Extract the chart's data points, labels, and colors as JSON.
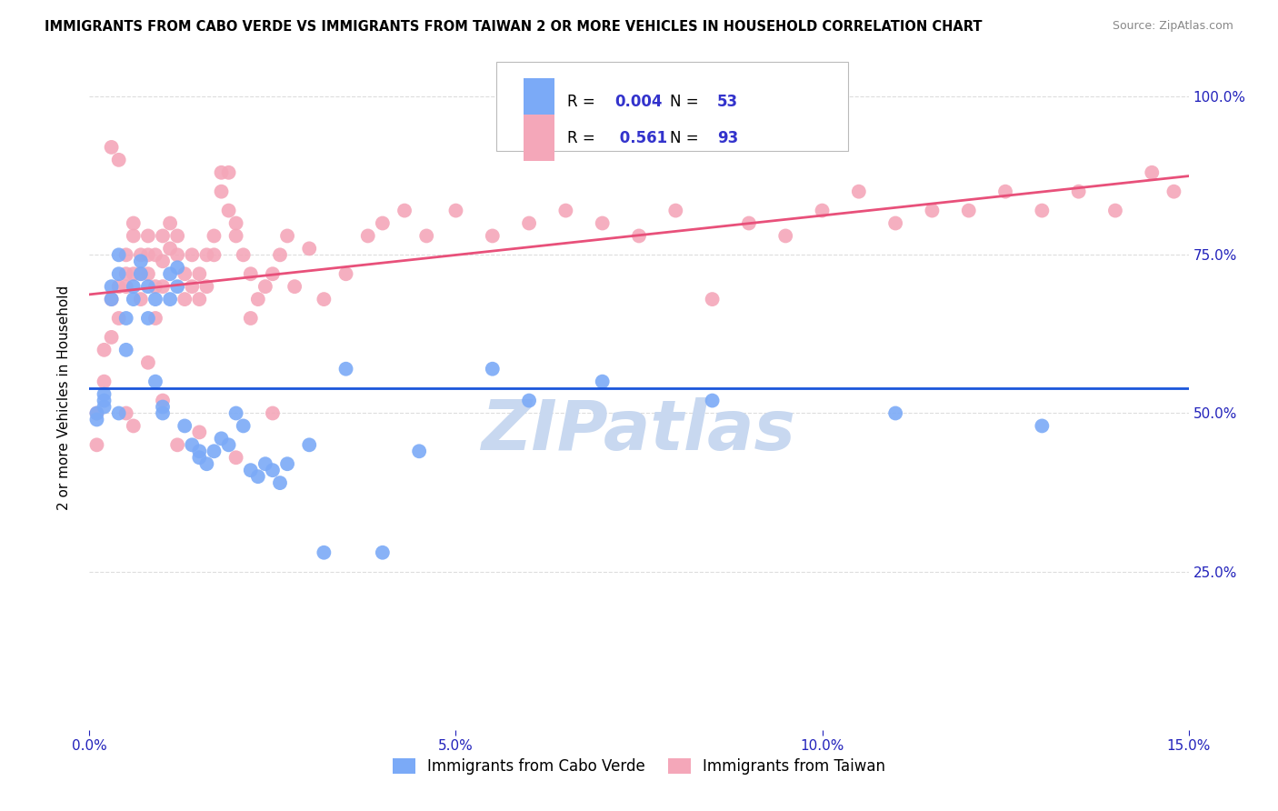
{
  "title": "IMMIGRANTS FROM CABO VERDE VS IMMIGRANTS FROM TAIWAN 2 OR MORE VEHICLES IN HOUSEHOLD CORRELATION CHART",
  "source": "Source: ZipAtlas.com",
  "ylabel": "2 or more Vehicles in Household",
  "xlim": [
    0.0,
    0.15
  ],
  "ylim": [
    0.0,
    1.05
  ],
  "xtick_labels": [
    "0.0%",
    "5.0%",
    "10.0%",
    "15.0%"
  ],
  "xtick_vals": [
    0.0,
    0.05,
    0.1,
    0.15
  ],
  "ytick_labels": [
    "25.0%",
    "50.0%",
    "75.0%",
    "100.0%"
  ],
  "ytick_vals": [
    0.25,
    0.5,
    0.75,
    1.0
  ],
  "cabo_verde_color": "#7baaf7",
  "taiwan_color": "#f4a7b9",
  "cabo_verde_line_color": "#1a56db",
  "taiwan_line_color": "#e8507a",
  "cabo_verde_R": 0.004,
  "cabo_verde_N": 53,
  "taiwan_R": 0.561,
  "taiwan_N": 93,
  "legend_color": "#3333cc",
  "cabo_verde_x": [
    0.001,
    0.001,
    0.002,
    0.002,
    0.002,
    0.003,
    0.003,
    0.004,
    0.004,
    0.004,
    0.005,
    0.005,
    0.006,
    0.006,
    0.007,
    0.007,
    0.008,
    0.008,
    0.009,
    0.009,
    0.01,
    0.01,
    0.011,
    0.011,
    0.012,
    0.012,
    0.013,
    0.014,
    0.015,
    0.015,
    0.016,
    0.017,
    0.018,
    0.019,
    0.02,
    0.021,
    0.022,
    0.023,
    0.024,
    0.025,
    0.026,
    0.027,
    0.03,
    0.032,
    0.035,
    0.04,
    0.045,
    0.055,
    0.06,
    0.07,
    0.085,
    0.11,
    0.13
  ],
  "cabo_verde_y": [
    0.5,
    0.49,
    0.51,
    0.52,
    0.53,
    0.68,
    0.7,
    0.72,
    0.75,
    0.5,
    0.65,
    0.6,
    0.68,
    0.7,
    0.74,
    0.72,
    0.7,
    0.65,
    0.68,
    0.55,
    0.5,
    0.51,
    0.68,
    0.72,
    0.7,
    0.73,
    0.48,
    0.45,
    0.43,
    0.44,
    0.42,
    0.44,
    0.46,
    0.45,
    0.5,
    0.48,
    0.41,
    0.4,
    0.42,
    0.41,
    0.39,
    0.42,
    0.45,
    0.28,
    0.57,
    0.28,
    0.44,
    0.57,
    0.52,
    0.55,
    0.52,
    0.5,
    0.48
  ],
  "taiwan_x": [
    0.001,
    0.001,
    0.002,
    0.002,
    0.003,
    0.003,
    0.004,
    0.004,
    0.005,
    0.005,
    0.005,
    0.006,
    0.006,
    0.006,
    0.007,
    0.007,
    0.007,
    0.008,
    0.008,
    0.008,
    0.009,
    0.009,
    0.009,
    0.01,
    0.01,
    0.01,
    0.011,
    0.011,
    0.012,
    0.012,
    0.013,
    0.013,
    0.014,
    0.014,
    0.015,
    0.015,
    0.016,
    0.016,
    0.017,
    0.017,
    0.018,
    0.018,
    0.019,
    0.019,
    0.02,
    0.02,
    0.021,
    0.022,
    0.022,
    0.023,
    0.024,
    0.025,
    0.026,
    0.027,
    0.028,
    0.03,
    0.032,
    0.035,
    0.038,
    0.04,
    0.043,
    0.046,
    0.05,
    0.055,
    0.06,
    0.065,
    0.07,
    0.075,
    0.08,
    0.085,
    0.09,
    0.095,
    0.1,
    0.105,
    0.11,
    0.115,
    0.12,
    0.125,
    0.13,
    0.135,
    0.14,
    0.145,
    0.148,
    0.003,
    0.004,
    0.005,
    0.006,
    0.008,
    0.01,
    0.012,
    0.015,
    0.02,
    0.025
  ],
  "taiwan_y": [
    0.45,
    0.5,
    0.55,
    0.6,
    0.62,
    0.68,
    0.7,
    0.65,
    0.72,
    0.75,
    0.7,
    0.78,
    0.8,
    0.72,
    0.75,
    0.72,
    0.68,
    0.78,
    0.75,
    0.72,
    0.75,
    0.7,
    0.65,
    0.78,
    0.74,
    0.7,
    0.8,
    0.76,
    0.78,
    0.75,
    0.72,
    0.68,
    0.75,
    0.7,
    0.72,
    0.68,
    0.75,
    0.7,
    0.78,
    0.75,
    0.88,
    0.85,
    0.88,
    0.82,
    0.8,
    0.78,
    0.75,
    0.72,
    0.65,
    0.68,
    0.7,
    0.72,
    0.75,
    0.78,
    0.7,
    0.76,
    0.68,
    0.72,
    0.78,
    0.8,
    0.82,
    0.78,
    0.82,
    0.78,
    0.8,
    0.82,
    0.8,
    0.78,
    0.82,
    0.68,
    0.8,
    0.78,
    0.82,
    0.85,
    0.8,
    0.82,
    0.82,
    0.85,
    0.82,
    0.85,
    0.82,
    0.88,
    0.85,
    0.92,
    0.9,
    0.5,
    0.48,
    0.58,
    0.52,
    0.45,
    0.47,
    0.43,
    0.5
  ],
  "background_color": "#ffffff",
  "watermark_text": "ZIPatlas",
  "watermark_color": "#c8d8f0",
  "grid_color": "#dddddd"
}
